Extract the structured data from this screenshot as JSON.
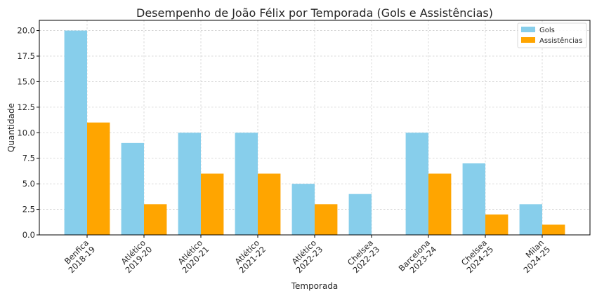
{
  "chart_data": {
    "type": "bar",
    "title": "Desempenho de João Félix por Temporada (Gols e Assistências)",
    "xlabel": "Temporada",
    "ylabel": "Quantidade",
    "ylim": [
      0,
      21
    ],
    "yticks": [
      "0.0",
      "2.5",
      "5.0",
      "7.5",
      "10.0",
      "12.5",
      "15.0",
      "17.5",
      "20.0"
    ],
    "grid": true,
    "legend_position": "top-right",
    "categories": [
      [
        "Benfica",
        "2018-19"
      ],
      [
        "Atlético",
        "2019-20"
      ],
      [
        "Atlético",
        "2020-21"
      ],
      [
        "Atlético",
        "2021-22"
      ],
      [
        "Atlético",
        "2022-23"
      ],
      [
        "Chelsea",
        "2022-23"
      ],
      [
        "Barcelona",
        "2023-24"
      ],
      [
        "Chelsea",
        "2024-25"
      ],
      [
        "Milan",
        "2024-25"
      ]
    ],
    "series": [
      {
        "name": "Gols",
        "color": "#87ceeb",
        "values": [
          20,
          9,
          10,
          10,
          5,
          4,
          10,
          7,
          3
        ]
      },
      {
        "name": "Assistências",
        "color": "#ffa500",
        "values": [
          11,
          3,
          6,
          6,
          3,
          0,
          6,
          2,
          1
        ]
      }
    ]
  }
}
